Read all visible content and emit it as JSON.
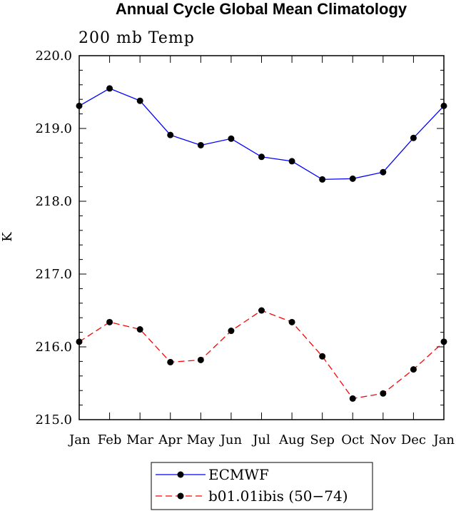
{
  "chart_data": {
    "type": "line",
    "title": "Annual Cycle Global Mean Climatology",
    "subtitle": "200 mb Temp",
    "xlabel": "",
    "ylabel": "K",
    "categories": [
      "Jan",
      "Feb",
      "Mar",
      "Apr",
      "May",
      "Jun",
      "Jul",
      "Aug",
      "Sep",
      "Oct",
      "Nov",
      "Dec",
      "Jan"
    ],
    "ylim": [
      215.0,
      220.0
    ],
    "yticks": [
      "215.0",
      "216.0",
      "217.0",
      "218.0",
      "219.0",
      "220.0"
    ],
    "grid": false,
    "legend_position": "bottom",
    "series": [
      {
        "name": "ECMWF",
        "color": "#0000ff",
        "dash": "solid",
        "values": [
          219.31,
          219.55,
          219.38,
          218.91,
          218.77,
          218.86,
          218.61,
          218.55,
          218.3,
          218.31,
          218.4,
          218.87,
          219.31
        ]
      },
      {
        "name": "b01.01ibis (50−74)",
        "color": "#ff0000",
        "dash": "dashed",
        "values": [
          216.07,
          216.34,
          216.24,
          215.79,
          215.82,
          216.22,
          216.5,
          216.34,
          215.87,
          215.29,
          215.36,
          215.69,
          216.07
        ]
      }
    ]
  }
}
